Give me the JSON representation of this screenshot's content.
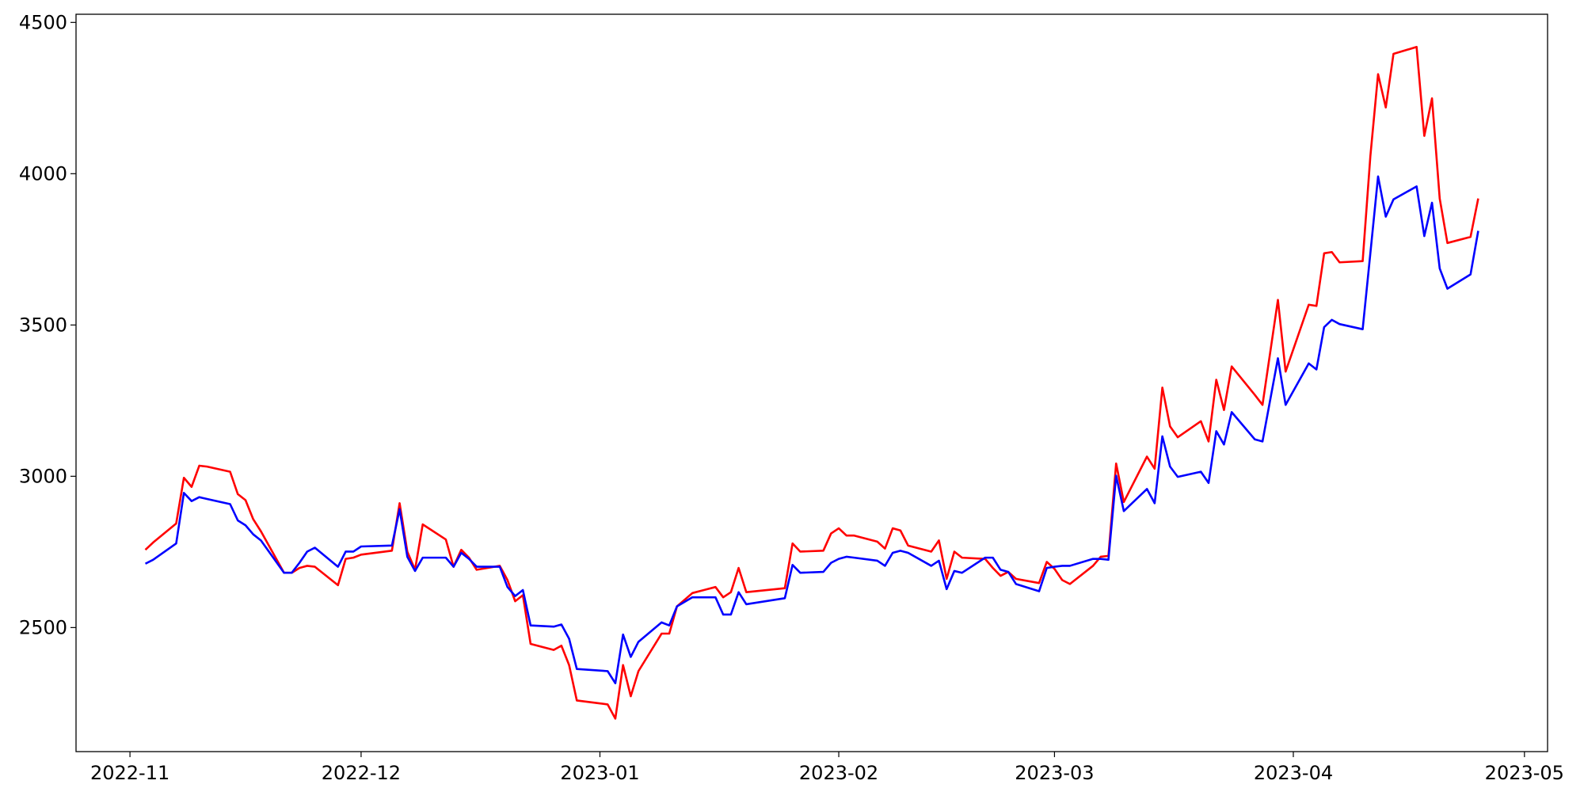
{
  "chart_data": {
    "type": "line",
    "x": [
      "2022-11-03",
      "2022-11-04",
      "2022-11-07",
      "2022-11-08",
      "2022-11-09",
      "2022-11-10",
      "2022-11-11",
      "2022-11-14",
      "2022-11-15",
      "2022-11-16",
      "2022-11-17",
      "2022-11-18",
      "2022-11-21",
      "2022-11-22",
      "2022-11-23",
      "2022-11-24",
      "2022-11-25",
      "2022-11-28",
      "2022-11-29",
      "2022-11-30",
      "2022-12-01",
      "2022-12-05",
      "2022-12-06",
      "2022-12-07",
      "2022-12-08",
      "2022-12-09",
      "2022-12-12",
      "2022-12-13",
      "2022-12-14",
      "2022-12-15",
      "2022-12-16",
      "2022-12-19",
      "2022-12-20",
      "2022-12-21",
      "2022-12-22",
      "2022-12-23",
      "2022-12-26",
      "2022-12-27",
      "2022-12-28",
      "2022-12-29",
      "2023-01-02",
      "2023-01-03",
      "2023-01-04",
      "2023-01-05",
      "2023-01-06",
      "2023-01-09",
      "2023-01-10",
      "2023-01-11",
      "2023-01-13",
      "2023-01-16",
      "2023-01-17",
      "2023-01-18",
      "2023-01-19",
      "2023-01-20",
      "2023-01-25",
      "2023-01-26",
      "2023-01-27",
      "2023-01-30",
      "2023-01-31",
      "2023-02-01",
      "2023-02-02",
      "2023-02-03",
      "2023-02-06",
      "2023-02-07",
      "2023-02-08",
      "2023-02-09",
      "2023-02-10",
      "2023-02-13",
      "2023-02-14",
      "2023-02-15",
      "2023-02-16",
      "2023-02-17",
      "2023-02-20",
      "2023-02-21",
      "2023-02-22",
      "2023-02-23",
      "2023-02-24",
      "2023-02-27",
      "2023-02-28",
      "2023-03-01",
      "2023-03-02",
      "2023-03-03",
      "2023-03-06",
      "2023-03-07",
      "2023-03-08",
      "2023-03-09",
      "2023-03-10",
      "2023-03-13",
      "2023-03-14",
      "2023-03-15",
      "2023-03-16",
      "2023-03-17",
      "2023-03-20",
      "2023-03-21",
      "2023-03-22",
      "2023-03-23",
      "2023-03-24",
      "2023-03-27",
      "2023-03-28",
      "2023-03-30",
      "2023-03-31",
      "2023-04-03",
      "2023-04-04",
      "2023-04-05",
      "2023-04-06",
      "2023-04-07",
      "2023-04-10",
      "2023-04-11",
      "2023-04-12",
      "2023-04-13",
      "2023-04-14",
      "2023-04-17",
      "2023-04-18",
      "2023-04-19",
      "2023-04-20",
      "2023-04-21",
      "2023-04-24",
      "2023-04-25"
    ],
    "series": [
      {
        "color": "#ff0000",
        "values": [
          2757,
          2781,
          2844,
          2995,
          2965,
          3035,
          3032,
          3015,
          2941,
          2921,
          2858,
          2818,
          2681,
          2681,
          2697,
          2704,
          2701,
          2640,
          2727,
          2731,
          2741,
          2754,
          2911,
          2751,
          2691,
          2841,
          2791,
          2701,
          2757,
          2731,
          2691,
          2704,
          2657,
          2587,
          2607,
          2446,
          2426,
          2440,
          2376,
          2259,
          2246,
          2199,
          2376,
          2273,
          2356,
          2480,
          2480,
          2570,
          2614,
          2634,
          2600,
          2617,
          2697,
          2617,
          2630,
          2778,
          2751,
          2754,
          2811,
          2828,
          2804,
          2804,
          2784,
          2761,
          2828,
          2821,
          2771,
          2751,
          2788,
          2661,
          2751,
          2731,
          2727,
          2697,
          2671,
          2684,
          2661,
          2647,
          2717,
          2694,
          2657,
          2644,
          2704,
          2734,
          2737,
          3042,
          2915,
          3065,
          3025,
          3293,
          3165,
          3129,
          3182,
          3115,
          3319,
          3219,
          3363,
          3269,
          3236,
          3583,
          3346,
          3567,
          3563,
          3737,
          3741,
          3707,
          3711,
          4058,
          4329,
          4219,
          4396,
          4419,
          4125,
          4249,
          3918,
          3771,
          3791,
          3918
        ]
      },
      {
        "color": "#0000ff",
        "values": [
          2711,
          2724,
          2778,
          2945,
          2918,
          2931,
          2925,
          2908,
          2854,
          2838,
          2808,
          2788,
          2681,
          2681,
          2714,
          2751,
          2764,
          2701,
          2751,
          2751,
          2768,
          2771,
          2891,
          2734,
          2687,
          2731,
          2731,
          2701,
          2747,
          2727,
          2701,
          2701,
          2634,
          2604,
          2624,
          2507,
          2503,
          2510,
          2463,
          2363,
          2356,
          2316,
          2477,
          2403,
          2453,
          2517,
          2507,
          2570,
          2600,
          2600,
          2543,
          2543,
          2617,
          2577,
          2597,
          2707,
          2681,
          2684,
          2714,
          2727,
          2734,
          2731,
          2721,
          2704,
          2747,
          2754,
          2747,
          2704,
          2721,
          2627,
          2687,
          2681,
          2731,
          2731,
          2691,
          2684,
          2644,
          2620,
          2697,
          2701,
          2704,
          2704,
          2727,
          2727,
          2724,
          3002,
          2885,
          2958,
          2911,
          3132,
          3032,
          2998,
          3015,
          2978,
          3149,
          3105,
          3212,
          3122,
          3115,
          3390,
          3236,
          3373,
          3353,
          3493,
          3517,
          3503,
          3486,
          3737,
          3991,
          3858,
          3915,
          3958,
          3794,
          3904,
          3687,
          3620,
          3667,
          3811
        ]
      }
    ],
    "xlim": [
      "2022-10-25",
      "2023-05-04"
    ],
    "xticks": [
      {
        "value": "2022-11-01",
        "label": "2022-11"
      },
      {
        "value": "2022-12-01",
        "label": "2022-12"
      },
      {
        "value": "2023-01-01",
        "label": "2023-01"
      },
      {
        "value": "2023-02-01",
        "label": "2023-02"
      },
      {
        "value": "2023-03-01",
        "label": "2023-03"
      },
      {
        "value": "2023-04-01",
        "label": "2023-04"
      },
      {
        "value": "2023-05-01",
        "label": "2023-05"
      }
    ],
    "ylim": [
      2090,
      4527
    ],
    "yticks": [
      2500,
      3000,
      3500,
      4000,
      4500
    ],
    "grid": false
  }
}
